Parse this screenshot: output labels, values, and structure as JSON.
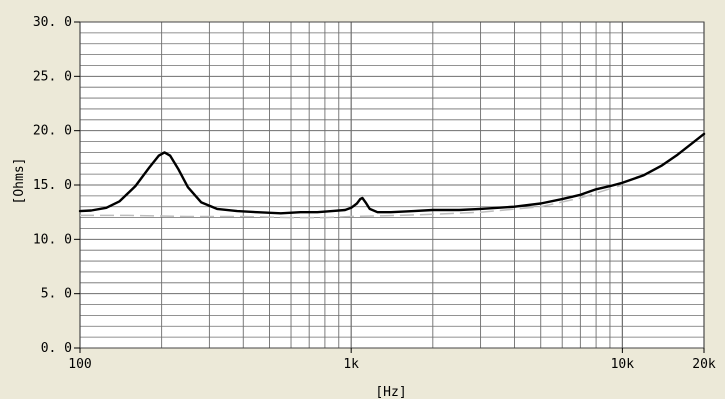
{
  "chart_data": {
    "type": "line",
    "xlabel": "[Hz]",
    "ylabel": "[Ohms]",
    "x_scale": "log",
    "xlim": [
      100,
      20000
    ],
    "ylim": [
      0,
      30
    ],
    "grid": true,
    "x_ticks": [
      {
        "value": 100,
        "label": "100"
      },
      {
        "value": 1000,
        "label": "1k"
      },
      {
        "value": 10000,
        "label": "10k"
      },
      {
        "value": 20000,
        "label": "20k"
      }
    ],
    "y_ticks": [
      {
        "value": 0,
        "label": "0. 0"
      },
      {
        "value": 5,
        "label": "5. 0"
      },
      {
        "value": 10,
        "label": "10. 0"
      },
      {
        "value": 15,
        "label": "15. 0"
      },
      {
        "value": 20,
        "label": "20. 0"
      },
      {
        "value": 25,
        "label": "25. 0"
      },
      {
        "value": 30,
        "label": "30. 0"
      }
    ],
    "colors": {
      "background": "#ece9d8",
      "plot_area": "#ffffff",
      "grid": "#6e6e6e",
      "curve": "#000000",
      "reference": "#bdbdbd"
    },
    "series": [
      {
        "x": [
          100,
          110,
          125,
          140,
          160,
          180,
          195,
          205,
          215,
          230,
          250,
          280,
          320,
          380,
          450,
          550,
          650,
          750,
          850,
          950,
          1000,
          1050,
          1080,
          1100,
          1130,
          1170,
          1250,
          1400,
          1700,
          2000,
          2500,
          3000,
          4000,
          5000,
          6000,
          7000,
          8000,
          9000,
          10000,
          12000,
          14000,
          16000,
          18000,
          20000
        ],
        "values": [
          12.6,
          12.65,
          12.9,
          13.5,
          14.9,
          16.6,
          17.7,
          18.0,
          17.7,
          16.5,
          14.8,
          13.4,
          12.8,
          12.6,
          12.5,
          12.4,
          12.5,
          12.5,
          12.6,
          12.7,
          12.9,
          13.3,
          13.7,
          13.8,
          13.4,
          12.8,
          12.5,
          12.5,
          12.6,
          12.7,
          12.7,
          12.8,
          13.0,
          13.3,
          13.7,
          14.1,
          14.6,
          14.9,
          15.2,
          15.9,
          16.8,
          17.8,
          18.8,
          19.7
        ]
      }
    ],
    "reference_curve": {
      "x": [
        100,
        150,
        250,
        400,
        600,
        800,
        1000,
        1500,
        2000,
        3000,
        5000,
        7000,
        10000
      ],
      "values": [
        12.2,
        12.2,
        12.1,
        12.1,
        12.0,
        12.0,
        12.1,
        12.2,
        12.3,
        12.5,
        13.0,
        13.8,
        15.0
      ]
    }
  }
}
